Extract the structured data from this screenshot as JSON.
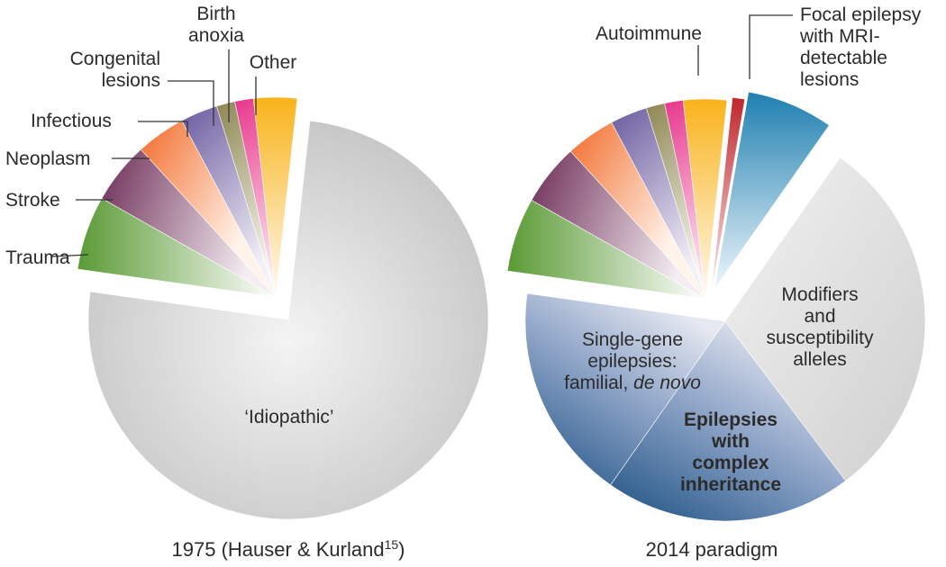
{
  "chart_data": [
    {
      "type": "pie",
      "caption": "1975 (Hauser & Kurland",
      "caption_ref": "15",
      "caption_end": ")",
      "exploded": "Other",
      "slices": [
        {
          "label": "Trauma",
          "value": 6.0,
          "color": "#5a9a35"
        },
        {
          "label": "Stroke",
          "value": 5.0,
          "color": "#6d2c56"
        },
        {
          "label": "Neoplasm",
          "value": 4.0,
          "color": "#f26c2b"
        },
        {
          "label": "Infectious",
          "value": 3.0,
          "color": "#6a5a9e"
        },
        {
          "label": "Congenital lesions",
          "value": 1.5,
          "color": "#8d8552"
        },
        {
          "label": "Birth anoxia",
          "value": 1.5,
          "color": "#e8378c"
        },
        {
          "label": "Other",
          "value": 3.5,
          "color": "#f9b31b"
        },
        {
          "label": "‘Idiopathic’",
          "value": 75.5,
          "color": "#c9c9c9"
        }
      ]
    },
    {
      "type": "pie",
      "caption": "2014 paradigm",
      "slices": [
        {
          "label": "",
          "value": 6.0,
          "color": "#5a9a35"
        },
        {
          "label": "",
          "value": 5.0,
          "color": "#6d2c56"
        },
        {
          "label": "",
          "value": 4.0,
          "color": "#f26c2b"
        },
        {
          "label": "",
          "value": 3.0,
          "color": "#6a5a9e"
        },
        {
          "label": "",
          "value": 1.5,
          "color": "#8d8552"
        },
        {
          "label": "",
          "value": 1.5,
          "color": "#e8378c"
        },
        {
          "label": "",
          "value": 3.5,
          "color": "#f9b31b"
        },
        {
          "label": "Autoimmune",
          "value": 1.0,
          "color": "#c0272d"
        },
        {
          "label": "Focal epilepsy with MRI-detectable lesions",
          "value": 7.0,
          "color": "#1f7fb0"
        },
        {
          "label": "Modifiers and susceptibility alleles",
          "value": 30.0,
          "color": "#c9c9c9"
        },
        {
          "label": "Single-gene epilepsies: familial, de novo",
          "value": 20.0,
          "color": "#2f5e8e"
        },
        {
          "label": "Epilepsies with complex inheritance",
          "value": 17.5,
          "color": "#3d6aa0"
        }
      ]
    }
  ],
  "labels": {
    "trauma": "Trauma",
    "stroke": "Stroke",
    "neoplasm": "Neoplasm",
    "infectious": "Infectious",
    "congenital_1": "Congenital",
    "congenital_2": "lesions",
    "birth_1": "Birth",
    "birth_2": "anoxia",
    "other": "Other",
    "idiopathic": "‘Idiopathic’",
    "autoimmune": "Autoimmune",
    "focal_1": "Focal epilepsy",
    "focal_2": "with MRI-",
    "focal_3": "detectable",
    "focal_4": "lesions",
    "modifiers_1": "Modifiers",
    "modifiers_2": "and",
    "modifiers_3": "susceptibility",
    "modifiers_4": "alleles",
    "single_1": "Single-gene",
    "single_2": "epilepsies:",
    "single_3": "familial,",
    "single_4": "de novo",
    "complex_1": "Epilepsies",
    "complex_2": "with",
    "complex_3": "complex",
    "complex_4": "inheritance"
  },
  "colors": {
    "idiopathic_grey": "#c9c9c9",
    "gene_blue": "#2f5e8e",
    "focal_blue": "#1f7fb0",
    "autoimmune_red": "#c0272d"
  }
}
